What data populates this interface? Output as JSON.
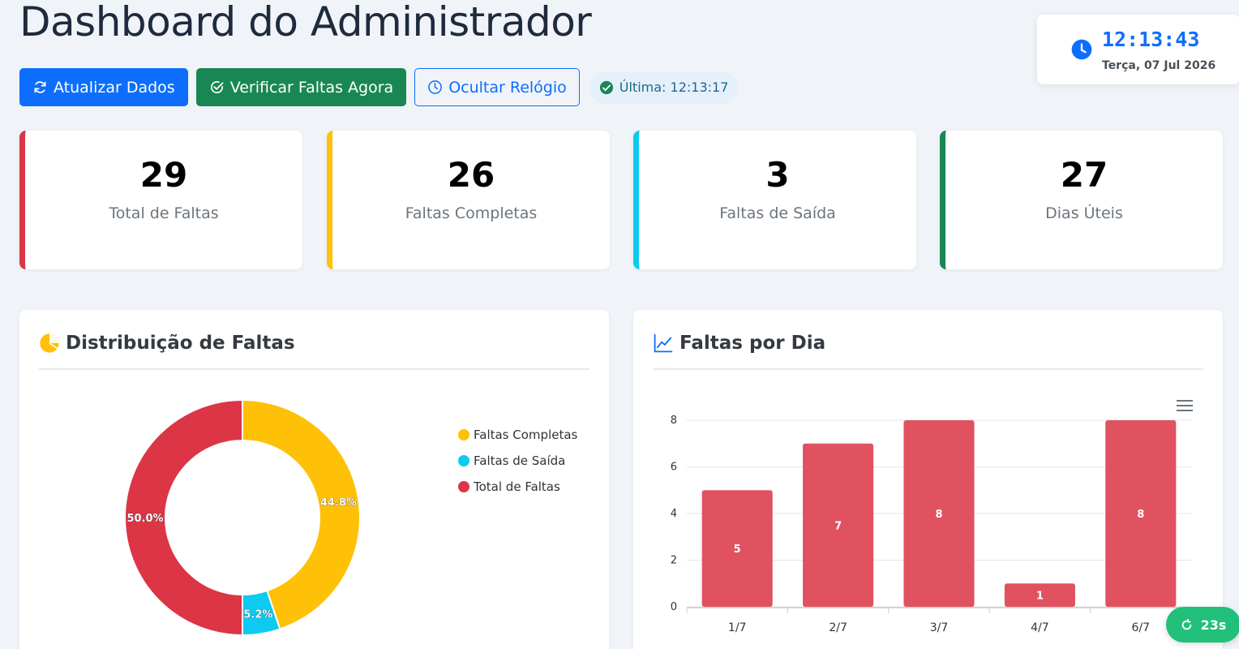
{
  "header": {
    "title": "Dashboard do Administrador"
  },
  "toolbar": {
    "refresh_label": "Atualizar Dados",
    "check_label": "Verificar Faltas Agora",
    "toggle_clock_label": "Ocultar Relógio",
    "last_update": "Última: 12:13:17"
  },
  "clock": {
    "time": "12:13:43",
    "date": "Terça, 07 Jul 2026"
  },
  "stats": [
    {
      "value": "29",
      "label": "Total de Faltas",
      "color": "#dc3545"
    },
    {
      "value": "26",
      "label": "Faltas Completas",
      "color": "#ffc107"
    },
    {
      "value": "3",
      "label": "Faltas de Saída",
      "color": "#0dcaf0"
    },
    {
      "value": "27",
      "label": "Dias Úteis",
      "color": "#198754"
    }
  ],
  "panels": {
    "distribution_title": "Distribuição de Faltas",
    "daily_title": "Faltas por Dia"
  },
  "chart_data": [
    {
      "type": "pie",
      "labels": [
        "Faltas Completas",
        "Faltas de Saída",
        "Total de Faltas"
      ],
      "values": [
        26,
        3,
        29
      ],
      "percent_labels": [
        "44.8%",
        "5.2%",
        "50.0%"
      ],
      "colors": [
        "#ffc107",
        "#0dcaf0",
        "#dc3545"
      ],
      "legend": "right"
    },
    {
      "type": "bar",
      "categories": [
        "1/7",
        "2/7",
        "3/7",
        "4/7",
        "6/7"
      ],
      "values": [
        5,
        7,
        8,
        1,
        8
      ],
      "yticks": [
        0,
        2,
        4,
        6,
        8
      ],
      "ylim": [
        0,
        8
      ],
      "color": "#e05260",
      "grid": true
    }
  ],
  "timer": {
    "label": "23s"
  }
}
